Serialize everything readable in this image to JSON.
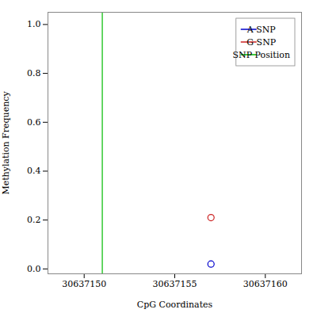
{
  "chart_data": {
    "type": "scatter",
    "xlabel": "CpG Coordinates",
    "ylabel": "Methylation Frequency",
    "xlim": [
      30637148,
      30637162
    ],
    "ylim": [
      -0.02,
      1.05
    ],
    "xticks": [
      30637150,
      30637155,
      30637160
    ],
    "yticks": [
      {
        "value": 0,
        "label": "0.0"
      },
      0.2,
      0.4,
      0.6,
      0.8,
      {
        "value": 1,
        "label": "1.0"
      }
    ],
    "grid": false,
    "legend": "upper right",
    "series": [
      {
        "name": "A SNP",
        "type": "scatter",
        "color": "#0000CC",
        "marker": "circle",
        "x": [
          30637157
        ],
        "values": [
          0.02
        ]
      },
      {
        "name": "G SNP",
        "type": "scatter",
        "color": "#CC2222",
        "marker": "circle",
        "x": [
          30637157
        ],
        "values": [
          0.21
        ]
      },
      {
        "name": "SNP Position",
        "type": "vline",
        "color": "#00BB00",
        "x": [
          30637151
        ]
      }
    ]
  }
}
